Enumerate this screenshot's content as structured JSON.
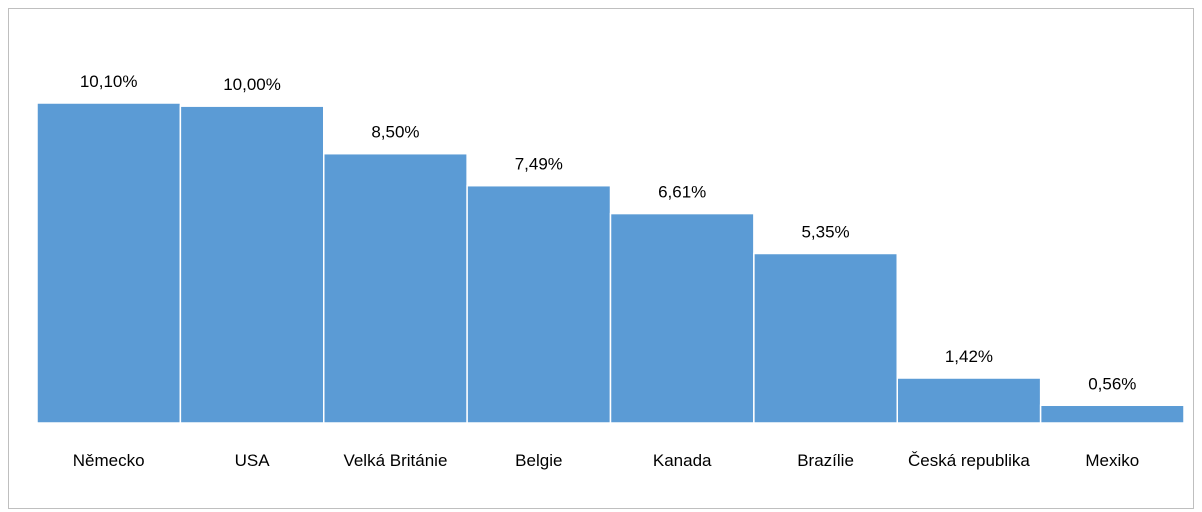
{
  "chart_data": {
    "type": "bar",
    "categories": [
      "Německo",
      "USA",
      "Velká Británie",
      "Belgie",
      "Kanada",
      "Brazílie",
      "Česká republika",
      "Mexiko"
    ],
    "values": [
      10.1,
      10.0,
      8.5,
      7.49,
      6.61,
      5.35,
      1.42,
      0.56
    ],
    "value_labels": [
      "10,10%",
      "10,00%",
      "8,50%",
      "7,49%",
      "6,61%",
      "5,35%",
      "1,42%",
      "0,56%"
    ],
    "color": "#5b9bd5"
  }
}
